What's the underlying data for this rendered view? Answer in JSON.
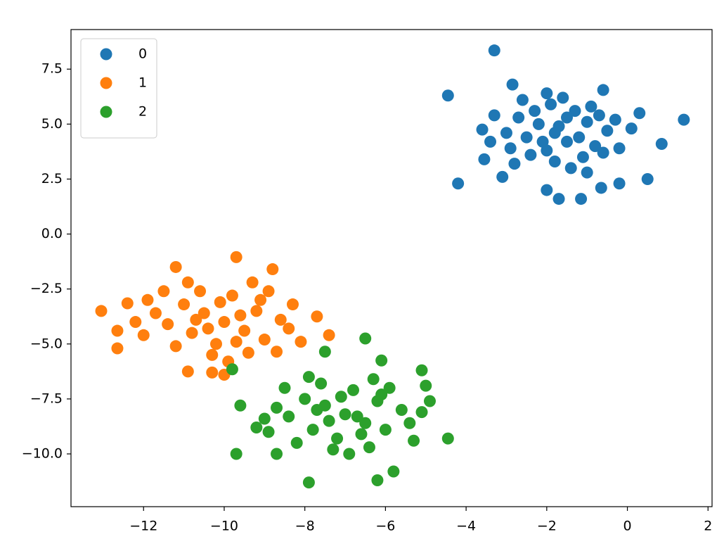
{
  "chart_data": {
    "type": "scatter",
    "xlim": [
      -13.8,
      2.1
    ],
    "ylim": [
      -12.4,
      9.3
    ],
    "xticks": [
      {
        "value": -12,
        "label": "−12"
      },
      {
        "value": -10,
        "label": "−10"
      },
      {
        "value": -8,
        "label": "−8"
      },
      {
        "value": -6,
        "label": "−6"
      },
      {
        "value": -4,
        "label": "−4"
      },
      {
        "value": -2,
        "label": "−2"
      },
      0,
      2
    ],
    "yticks": [
      {
        "value": -10,
        "label": "−10.0"
      },
      {
        "value": -7.5,
        "label": "−7.5"
      },
      {
        "value": -5,
        "label": "−5.0"
      },
      {
        "value": -2.5,
        "label": "−2.5"
      },
      {
        "value": 0,
        "label": "0.0"
      },
      {
        "value": 2.5,
        "label": "2.5"
      },
      {
        "value": 5,
        "label": "5.0"
      },
      {
        "value": 7.5,
        "label": "7.5"
      }
    ],
    "legend": "upper left",
    "series": [
      {
        "name": "0",
        "color": "#1f77b4",
        "x": [
          -1.8,
          -2.2,
          -1.5,
          -2.5,
          -1.0,
          -2.0,
          -1.3,
          -2.7,
          -0.8,
          -1.9,
          -2.4,
          -1.1,
          -0.5,
          -3.0,
          -1.6,
          -2.1,
          -0.3,
          -1.4,
          -2.9,
          -0.9,
          -3.3,
          -1.7,
          -2.3,
          -0.6,
          -1.2,
          0.1,
          -2.6,
          -1.0,
          -3.4,
          -0.2,
          -1.8,
          -2.0,
          -0.7,
          0.3,
          -2.8,
          -1.5,
          -3.3,
          -4.45,
          1.4,
          0.85,
          -4.2,
          -1.7,
          -1.15,
          -0.65,
          -0.2,
          -0.6,
          -2.85,
          -3.6,
          -3.55,
          0.5,
          -3.1,
          -2.0
        ],
        "y": [
          4.6,
          5.0,
          4.2,
          4.4,
          5.1,
          3.8,
          5.6,
          5.3,
          4.0,
          5.9,
          3.6,
          3.5,
          4.7,
          4.6,
          6.2,
          4.2,
          5.2,
          3.0,
          3.9,
          5.8,
          5.4,
          4.9,
          5.6,
          3.7,
          4.4,
          4.8,
          6.1,
          2.8,
          4.2,
          3.9,
          3.3,
          6.4,
          5.4,
          5.5,
          3.2,
          5.3,
          8.35,
          6.3,
          5.2,
          4.1,
          2.3,
          1.6,
          1.6,
          2.1,
          2.3,
          6.55,
          6.8,
          4.75,
          3.4,
          2.5,
          2.6,
          2.0
        ]
      },
      {
        "name": "1",
        "color": "#ff7f0e",
        "x": [
          -10,
          -10.5,
          -9.5,
          -10.8,
          -9.2,
          -10.2,
          -11.0,
          -9.8,
          -9.0,
          -10.6,
          -11.4,
          -9.4,
          -8.6,
          -10.1,
          -11.7,
          -9.6,
          -10.4,
          -8.9,
          -11.2,
          -9.9,
          -10.9,
          -8.4,
          -12.0,
          -9.3,
          -11.5,
          -10.3,
          -9.7,
          -8.1,
          -11.9,
          -10.7,
          -9.1,
          -12.2,
          -13.05,
          -12.65,
          -12.65,
          -9.7,
          -11.2,
          -7.4,
          -7.7,
          -8.7,
          -10.3,
          -10.9,
          -10.0,
          -12.4,
          -8.8,
          -8.3
        ],
        "y": [
          -4,
          -3.6,
          -4.4,
          -4.5,
          -3.5,
          -5.0,
          -3.2,
          -2.8,
          -4.8,
          -2.6,
          -4.1,
          -5.4,
          -3.9,
          -3.1,
          -3.6,
          -3.7,
          -4.3,
          -2.6,
          -5.1,
          -5.8,
          -2.2,
          -4.3,
          -4.6,
          -2.2,
          -2.6,
          -5.5,
          -4.9,
          -4.9,
          -3.0,
          -3.9,
          -3.0,
          -4.0,
          -3.5,
          -5.2,
          -4.4,
          -1.05,
          -1.5,
          -4.6,
          -3.75,
          -5.35,
          -6.3,
          -6.25,
          -6.4,
          -3.15,
          -1.6,
          -3.2
        ]
      },
      {
        "name": "2",
        "color": "#2ca02c",
        "x": [
          -7,
          -7.5,
          -6.5,
          -7.8,
          -6.2,
          -7.2,
          -8.0,
          -6.8,
          -6.0,
          -7.6,
          -8.4,
          -6.4,
          -5.6,
          -7.1,
          -8.7,
          -6.7,
          -7.4,
          -5.9,
          -8.2,
          -6.9,
          -7.9,
          -5.4,
          -9.0,
          -6.3,
          -8.5,
          -7.3,
          -6.6,
          -5.1,
          -8.9,
          -7.7,
          -6.1,
          -5.3,
          -4.9,
          -5.0,
          -7.9,
          -6.2,
          -9.7,
          -4.45,
          -9.8,
          -6.5,
          -6.1,
          -7.5,
          -5.1,
          -9.6,
          -9.2,
          -5.8,
          -8.7
        ],
        "y": [
          -8.2,
          -7.8,
          -8.6,
          -8.9,
          -7.6,
          -9.3,
          -7.5,
          -7.1,
          -8.9,
          -6.8,
          -8.3,
          -9.7,
          -8.0,
          -7.4,
          -7.9,
          -8.3,
          -8.5,
          -7.0,
          -9.5,
          -10.0,
          -6.5,
          -8.6,
          -8.4,
          -6.6,
          -7.0,
          -9.8,
          -9.1,
          -8.1,
          -9.0,
          -8.0,
          -7.3,
          -9.4,
          -7.6,
          -6.9,
          -11.3,
          -11.2,
          -10.0,
          -9.3,
          -6.15,
          -4.75,
          -5.75,
          -5.35,
          -6.2,
          -7.8,
          -8.8,
          -10.8,
          -10.0
        ]
      }
    ]
  }
}
